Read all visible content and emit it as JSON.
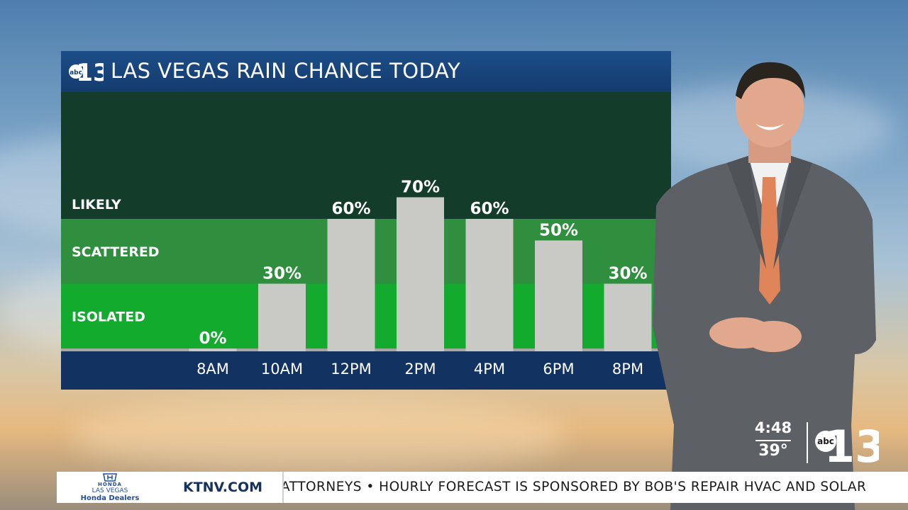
{
  "station": {
    "logo_prefix": "abc",
    "logo_number": "13"
  },
  "chart_data": {
    "type": "bar",
    "title": "LAS VEGAS RAIN CHANCE TODAY",
    "categories": [
      "8AM",
      "10AM",
      "12PM",
      "2PM",
      "4PM",
      "6PM",
      "8PM"
    ],
    "values": [
      0,
      30,
      60,
      70,
      60,
      50,
      30
    ],
    "value_labels": [
      "0%",
      "30%",
      "60%",
      "70%",
      "60%",
      "50%",
      "30%"
    ],
    "ylim": [
      0,
      100
    ],
    "bands": [
      {
        "label": "ISOLATED",
        "from": 0,
        "to": 30,
        "color": "#12ab2e"
      },
      {
        "label": "SCATTERED",
        "from": 30,
        "to": 60,
        "color": "#2f8f3e"
      },
      {
        "label": "LIKELY",
        "from": 60,
        "to": 100,
        "color": "#143c2b"
      }
    ],
    "bar_color": "#c9c9c6",
    "axis_color": "#123261"
  },
  "clock": {
    "time": "4:48",
    "temperature": "39°"
  },
  "ticker": {
    "sponsor_brand": "HONDA",
    "sponsor_city": "LAS VEGAS",
    "sponsor_name": "Honda Dealers",
    "site": "KTNV.COM",
    "crawl": "ATTORNEYS   •   HOURLY FORECAST IS SPONSORED BY BOB'S REPAIR HVAC AND SOLAR"
  }
}
